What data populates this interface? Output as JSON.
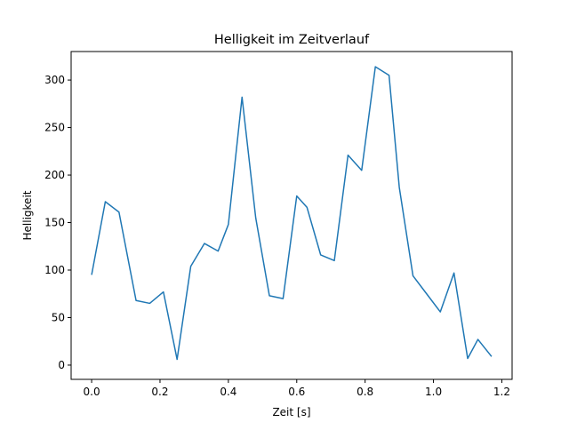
{
  "chart_data": {
    "type": "line",
    "title": "Helligkeit im Zeitverlauf",
    "xlabel": "Zeit [s]",
    "ylabel": "Helligkeit",
    "xlim": [
      -0.06,
      1.23
    ],
    "ylim": [
      -15,
      330
    ],
    "x_ticks": [
      0.0,
      0.2,
      0.4,
      0.6,
      0.8,
      1.0,
      1.2
    ],
    "x_tick_labels": [
      "0.0",
      "0.2",
      "0.4",
      "0.6",
      "0.8",
      "1.0",
      "1.2"
    ],
    "y_ticks": [
      0,
      50,
      100,
      150,
      200,
      250,
      300
    ],
    "y_tick_labels": [
      "0",
      "50",
      "100",
      "150",
      "200",
      "250",
      "300"
    ],
    "grid": false,
    "series": [
      {
        "color": "#1f77b4",
        "x": [
          0.0,
          0.04,
          0.08,
          0.13,
          0.17,
          0.21,
          0.25,
          0.29,
          0.33,
          0.37,
          0.4,
          0.44,
          0.48,
          0.52,
          0.56,
          0.6,
          0.63,
          0.67,
          0.71,
          0.75,
          0.79,
          0.83,
          0.87,
          0.9,
          0.94,
          0.98,
          1.02,
          1.06,
          1.1,
          1.13,
          1.17
        ],
        "y": [
          95,
          172,
          161,
          68,
          65,
          77,
          6,
          104,
          128,
          120,
          148,
          282,
          155,
          73,
          70,
          178,
          166,
          116,
          110,
          221,
          205,
          314,
          305,
          187,
          94,
          75,
          56,
          97,
          7,
          27,
          9
        ]
      }
    ]
  }
}
